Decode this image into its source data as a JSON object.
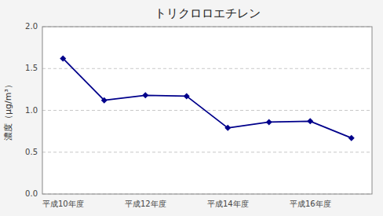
{
  "chart_data": {
    "type": "line",
    "title": "トリクロロエチレン",
    "ylabel": "濃度（μg/m³）",
    "categories": [
      "平成10年度",
      null,
      "平成12年度",
      null,
      "平成14年度",
      null,
      "平成16年度",
      null
    ],
    "values": [
      1.62,
      1.12,
      1.18,
      1.17,
      0.79,
      0.86,
      0.87,
      0.67
    ],
    "color": "#00008B",
    "marker": "diamond",
    "grid": true,
    "ylim": [
      0.0,
      2.0
    ],
    "yticks": [
      {
        "value": 0.0,
        "label": "0.0"
      },
      0.5,
      {
        "value": 1.0,
        "label": "1.0"
      },
      1.5,
      {
        "value": 2.0,
        "label": "2.0"
      }
    ]
  }
}
